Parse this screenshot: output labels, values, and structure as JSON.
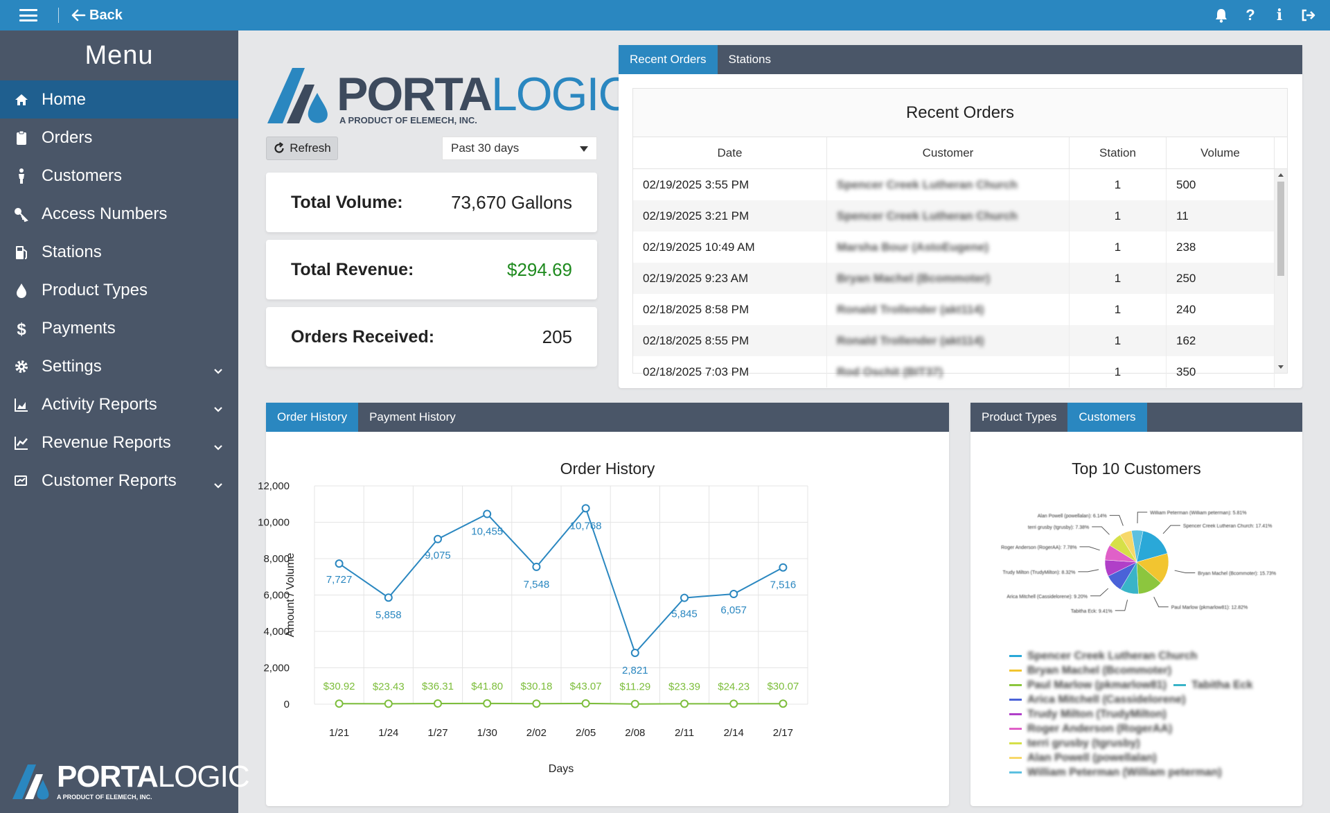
{
  "topbar": {
    "back_label": "Back"
  },
  "sidebar": {
    "title": "Menu",
    "items": [
      {
        "label": "Home",
        "icon": "home-icon",
        "active": true
      },
      {
        "label": "Orders",
        "icon": "clipboard-icon"
      },
      {
        "label": "Customers",
        "icon": "person-icon"
      },
      {
        "label": "Access Numbers",
        "icon": "key-icon"
      },
      {
        "label": "Stations",
        "icon": "fuel-pump-icon"
      },
      {
        "label": "Product Types",
        "icon": "droplet-icon"
      },
      {
        "label": "Payments",
        "icon": "dollar-icon"
      },
      {
        "label": "Settings",
        "icon": "gear-icon",
        "expandable": true
      },
      {
        "label": "Activity Reports",
        "icon": "area-chart-icon",
        "expandable": true
      },
      {
        "label": "Revenue Reports",
        "icon": "line-chart-icon",
        "expandable": true
      },
      {
        "label": "Customer Reports",
        "icon": "report-icon",
        "expandable": true
      }
    ],
    "logo": {
      "brand_bold": "PORTA",
      "brand_thin": "LOGIC",
      "tagline": "A PRODUCT OF ELEMECH, INC."
    }
  },
  "logo": {
    "brand_bold": "PORTA",
    "brand_thin": "LOGIC",
    "tagline": "A PRODUCT OF ELEMECH, INC."
  },
  "controls": {
    "refresh_label": "Refresh",
    "range_value": "Past 30 days"
  },
  "stats": {
    "volume_label": "Total Volume:",
    "volume_value": "73,670 Gallons",
    "revenue_label": "Total Revenue:",
    "revenue_value": "$294.69",
    "orders_label": "Orders Received:",
    "orders_value": "205"
  },
  "orders_panel": {
    "tabs": [
      "Recent Orders",
      "Stations"
    ],
    "title": "Recent Orders",
    "columns": [
      "Date",
      "Customer",
      "Station",
      "Volume"
    ],
    "rows": [
      {
        "date": "02/19/2025 3:55 PM",
        "customer": "Spencer Creek Lutheran Church",
        "station": "1",
        "volume": "500"
      },
      {
        "date": "02/19/2025 3:21 PM",
        "customer": "Spencer Creek Lutheran Church",
        "station": "1",
        "volume": "11"
      },
      {
        "date": "02/19/2025 10:49 AM",
        "customer": "Marsha Bour (AstoEugene)",
        "station": "1",
        "volume": "238"
      },
      {
        "date": "02/19/2025 9:23 AM",
        "customer": "Bryan Machel (Bcommoter)",
        "station": "1",
        "volume": "250"
      },
      {
        "date": "02/18/2025 8:58 PM",
        "customer": "Ronald Trollender (akt114)",
        "station": "1",
        "volume": "240"
      },
      {
        "date": "02/18/2025 8:55 PM",
        "customer": "Ronald Trollender (akt114)",
        "station": "1",
        "volume": "162"
      },
      {
        "date": "02/18/2025 7:03 PM",
        "customer": "Rod Oschit (BIT37)",
        "station": "1",
        "volume": "350"
      }
    ]
  },
  "history_panel": {
    "tabs": [
      "Order History",
      "Payment History"
    ]
  },
  "chart_data": [
    {
      "type": "line",
      "title": "Order History",
      "xlabel": "Days",
      "ylabel": "Amount / Volume",
      "categories": [
        "1/21",
        "1/24",
        "1/27",
        "1/30",
        "2/02",
        "2/05",
        "2/08",
        "2/11",
        "2/14",
        "2/17"
      ],
      "ylim": [
        0,
        12000
      ],
      "yticks": [
        "0",
        "2,000",
        "4,000",
        "6,000",
        "8,000",
        "10,000",
        "12,000"
      ],
      "grid": true,
      "series": [
        {
          "values": [
            7727,
            5858,
            9075,
            10455,
            7548,
            10768,
            2821,
            5845,
            6057,
            7516
          ],
          "labels": [
            "7,727",
            "5,858",
            "9,075",
            "10,455",
            "7,548",
            "10,768",
            "2,821",
            "5,845",
            "6,057",
            "7,516"
          ],
          "color": "#2a87c0"
        },
        {
          "values": [
            30.92,
            23.43,
            36.31,
            41.8,
            30.18,
            43.07,
            11.29,
            23.39,
            24.23,
            30.07
          ],
          "labels": [
            "$30.92",
            "$23.43",
            "$36.31",
            "$41.80",
            "$30.18",
            "$43.07",
            "$11.29",
            "$23.39",
            "$24.23",
            "$30.07"
          ],
          "color": "#7cbd3a"
        }
      ]
    },
    {
      "type": "pie",
      "title": "Top 10 Customers",
      "slices": [
        {
          "name": "Spencer Creek Lutheran Church",
          "value": 17.41,
          "label": "Spencer Creek Lutheran Church: 17.41%",
          "color": "#2aa8d8"
        },
        {
          "name": "Bryan Machel (Bcommoter)",
          "value": 15.73,
          "label": "Bryan Machel (Bcommoter): 15.73%",
          "color": "#f2c530"
        },
        {
          "name": "Paul Marlow (pkmarlow81)",
          "value": 12.82,
          "label": "Paul Marlow (pkmarlow81): 12.82%",
          "color": "#8cc63e"
        },
        {
          "name": "Tabitha Eck",
          "value": 9.41,
          "label": "Tabitha Eck: 9.41%",
          "color": "#39b4c8"
        },
        {
          "name": "Arica Mitchell (Cassidelorene)",
          "value": 9.2,
          "label": "Arica Mitchell (Cassidelorene): 9.20%",
          "color": "#4a62d8"
        },
        {
          "name": "Trudy Milton (TrudyMilton)",
          "value": 8.32,
          "label": "Trudy Milton (TrudyMilton): 8.32%",
          "color": "#b03fc8"
        },
        {
          "name": "Roger Anderson (RogerAA)",
          "value": 7.78,
          "label": "Roger Anderson (RogerAA): 7.78%",
          "color": "#e060c8"
        },
        {
          "name": "terri grusby (tgrusby)",
          "value": 7.38,
          "label": "terri grusby (tgrusby): 7.38%",
          "color": "#d6e048"
        },
        {
          "name": "Alan Powell (powellalan)",
          "value": 6.14,
          "label": "Alan Powell (powellalan): 6.14%",
          "color": "#f7d86a"
        },
        {
          "name": "William Peterman (William peterman)",
          "value": 5.81,
          "label": "William Peterman (William peterman): 5.81%",
          "color": "#5cc0e0"
        }
      ]
    }
  ],
  "customers_panel": {
    "tabs": [
      "Product Types",
      "Customers"
    ]
  },
  "colors": {
    "accent": "#2a87c0",
    "sidebar": "#4a5668",
    "sidebar_active": "#1f5f8f",
    "money": "#1e8a1e"
  }
}
